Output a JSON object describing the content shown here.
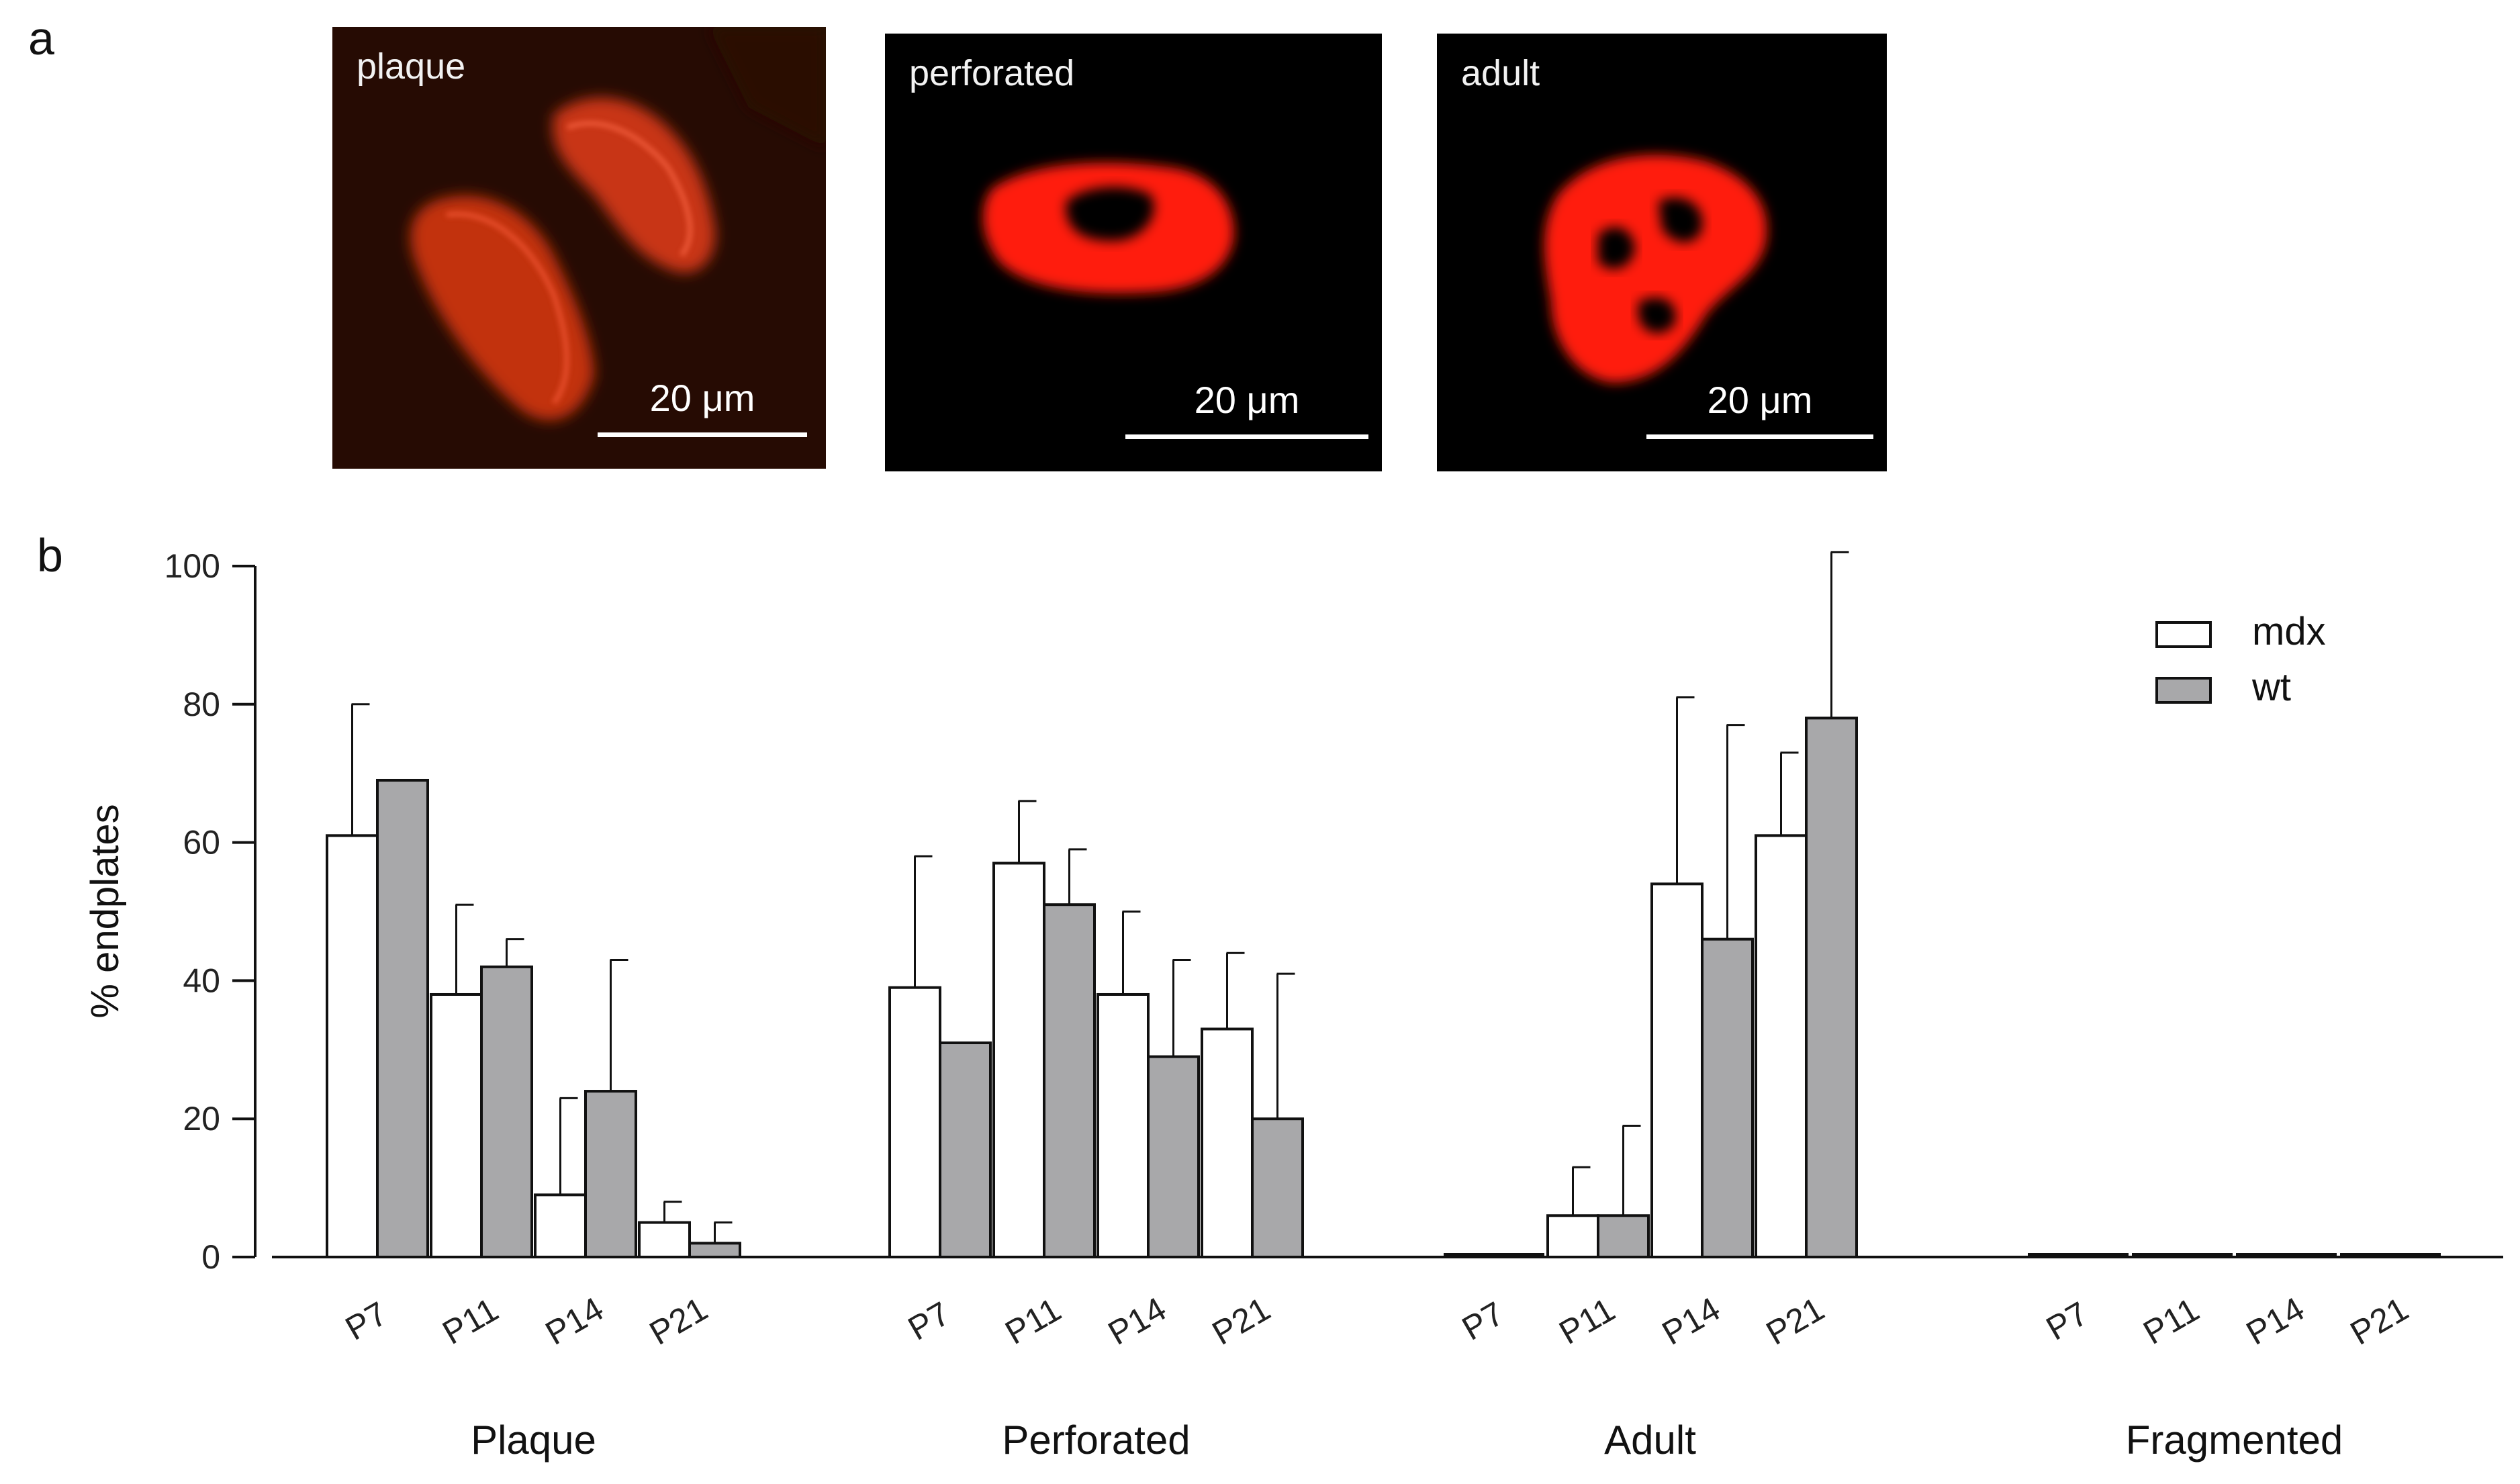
{
  "panels": {
    "a_label": "a",
    "b_label": "b"
  },
  "micrographs": [
    {
      "label": "plaque",
      "scale_text": "20 μm"
    },
    {
      "label": "perforated",
      "scale_text": "20 μm"
    },
    {
      "label": "adult",
      "scale_text": "20 μm"
    }
  ],
  "colors": {
    "mdx": "#ffffff",
    "wt": "#a8a8aa",
    "stain": "#ff1a10",
    "plaque_stain": "#d63a18"
  },
  "chart_data": {
    "type": "bar",
    "ylabel": "% endplates",
    "ylim": [
      0,
      100
    ],
    "yticks": [
      "0",
      "20",
      "40",
      "60",
      "80",
      "100"
    ],
    "legend": {
      "position": "top-right",
      "entries": [
        "mdx",
        "wt"
      ]
    },
    "series": [
      {
        "name": "mdx"
      },
      {
        "name": "wt"
      }
    ],
    "groups": [
      {
        "name": "Plaque",
        "categories": [
          "P7",
          "P11",
          "P14",
          "P21"
        ],
        "mdx": [
          61,
          38,
          9,
          5
        ],
        "mdx_err": [
          19,
          13,
          14,
          3
        ],
        "wt": [
          69,
          42,
          24,
          2
        ],
        "wt_err": [
          0,
          4,
          19,
          3
        ]
      },
      {
        "name": "Perforated",
        "categories": [
          "P7",
          "P11",
          "P14",
          "P21"
        ],
        "mdx": [
          39,
          57,
          38,
          33
        ],
        "mdx_err": [
          19,
          9,
          12,
          11
        ],
        "wt": [
          31,
          51,
          29,
          20
        ],
        "wt_err": [
          0,
          8,
          14,
          21
        ]
      },
      {
        "name": "Adult",
        "categories": [
          "P7",
          "P11",
          "P14",
          "P21"
        ],
        "mdx": [
          0,
          6,
          54,
          61
        ],
        "mdx_err": [
          0,
          7,
          27,
          12
        ],
        "wt": [
          0,
          6,
          46,
          78
        ],
        "wt_err": [
          0,
          13,
          31,
          24
        ]
      },
      {
        "name": "Fragmented",
        "categories": [
          "P7",
          "P11",
          "P14",
          "P21"
        ],
        "mdx": [
          0,
          0,
          0,
          0
        ],
        "mdx_err": [
          0,
          0,
          0,
          0
        ],
        "wt": [
          0,
          0,
          0,
          0
        ],
        "wt_err": [
          0,
          0,
          0,
          0
        ]
      }
    ]
  }
}
